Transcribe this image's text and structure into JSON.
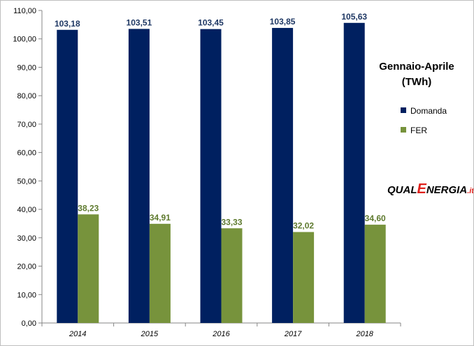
{
  "chart_data": {
    "type": "bar",
    "title": "Gennaio-Aprile",
    "subtitle": "(TWh)",
    "categories": [
      "2014",
      "2015",
      "2016",
      "2017",
      "2018"
    ],
    "series": [
      {
        "name": "Domanda",
        "color": "#002060",
        "values": [
          103.18,
          103.51,
          103.45,
          103.85,
          105.63
        ],
        "labels": [
          "103,18",
          "103,51",
          "103,45",
          "103,85",
          "105,63"
        ]
      },
      {
        "name": "FER",
        "color": "#77933c",
        "values": [
          38.23,
          34.91,
          33.33,
          32.02,
          34.6
        ],
        "labels": [
          "38,23",
          "34,91",
          "33,33",
          "32,02",
          "34,60"
        ]
      }
    ],
    "ylim": [
      0,
      110
    ],
    "yticks": [
      0,
      10,
      20,
      30,
      40,
      50,
      60,
      70,
      80,
      90,
      100,
      110
    ],
    "ytick_labels": [
      "0,00",
      "10,00",
      "20,00",
      "30,00",
      "40,00",
      "50,00",
      "60,00",
      "70,00",
      "80,00",
      "90,00",
      "100,00",
      "110,00"
    ],
    "grid": false,
    "legend_position": "right",
    "xlabel": "",
    "ylabel": ""
  },
  "logo": {
    "part1": "QUAL",
    "part2": "E",
    "part3": "NERGIA",
    "part4": ".it"
  }
}
